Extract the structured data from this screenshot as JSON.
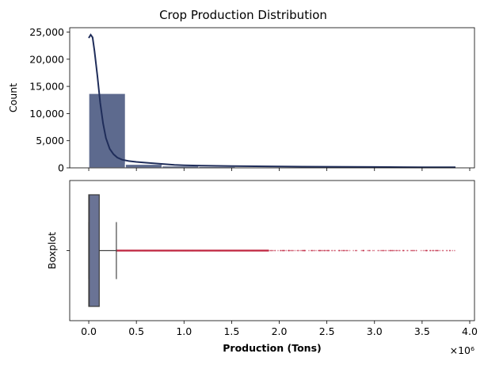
{
  "figure": {
    "title": "Crop Production Distribution",
    "offset_text": "×10⁶",
    "colors": {
      "bar_fill": "#5d6a8e",
      "bar_edge": "#ffffff",
      "kde_line": "#1f2d5a",
      "box_fill": "#6a7395",
      "outlier": "#c0253f",
      "whisker": "#444444"
    }
  },
  "chart_data": [
    {
      "type": "bar",
      "subtype": "histogram_with_kde",
      "title": "",
      "xlabel": "",
      "ylabel": "Count",
      "xlim": [
        -0.2,
        4.05
      ],
      "ylim": [
        0,
        25800
      ],
      "yticks": [
        0,
        5000,
        10000,
        15000,
        20000,
        25000
      ],
      "ytick_labels": [
        "0",
        "5,000",
        "10,000",
        "15,000",
        "20,000",
        "25,000"
      ],
      "xticks": [
        0,
        0.5,
        1.0,
        1.5,
        2.0,
        2.5,
        3.0,
        3.5,
        4.0
      ],
      "bins": [
        {
          "x0": 0.0,
          "x1": 0.385,
          "count": 13700
        },
        {
          "x0": 0.385,
          "x1": 0.77,
          "count": 650
        },
        {
          "x0": 0.77,
          "x1": 1.155,
          "count": 350
        },
        {
          "x0": 1.155,
          "x1": 1.54,
          "count": 250
        },
        {
          "x0": 1.54,
          "x1": 1.925,
          "count": 180
        },
        {
          "x0": 1.925,
          "x1": 2.31,
          "count": 140
        },
        {
          "x0": 2.31,
          "x1": 2.695,
          "count": 110
        },
        {
          "x0": 2.695,
          "x1": 3.08,
          "count": 90
        },
        {
          "x0": 3.08,
          "x1": 3.465,
          "count": 70
        },
        {
          "x0": 3.465,
          "x1": 3.85,
          "count": 60
        }
      ],
      "kde": {
        "x": [
          0.0,
          0.02,
          0.04,
          0.06,
          0.09,
          0.12,
          0.15,
          0.18,
          0.22,
          0.26,
          0.3,
          0.35,
          0.42,
          0.5,
          0.6,
          0.75,
          0.9,
          1.0,
          1.2,
          1.5,
          2.0,
          2.5,
          3.0,
          3.5,
          3.85
        ],
        "y": [
          23900,
          24500,
          24000,
          21500,
          17000,
          12000,
          8200,
          5500,
          3500,
          2500,
          1900,
          1500,
          1250,
          1100,
          950,
          750,
          550,
          480,
          400,
          330,
          250,
          200,
          160,
          120,
          100
        ]
      }
    },
    {
      "type": "boxplot",
      "title": "",
      "xlabel": "Production (Tons)",
      "ylabel": "Boxplot",
      "xlim": [
        -0.2,
        4.05
      ],
      "xticks": [
        0.0,
        0.5,
        1.0,
        1.5,
        2.0,
        2.5,
        3.0,
        3.5,
        4.0
      ],
      "xtick_labels": [
        "0.0",
        "0.5",
        "1.0",
        "1.5",
        "2.0",
        "2.5",
        "3.0",
        "3.5",
        "4.0"
      ],
      "box": {
        "whisker_low": 0.0,
        "q1": 0.0,
        "median": 0.005,
        "q3": 0.11,
        "whisker_high": 0.29
      },
      "outliers_range": [
        0.29,
        3.85
      ]
    }
  ]
}
